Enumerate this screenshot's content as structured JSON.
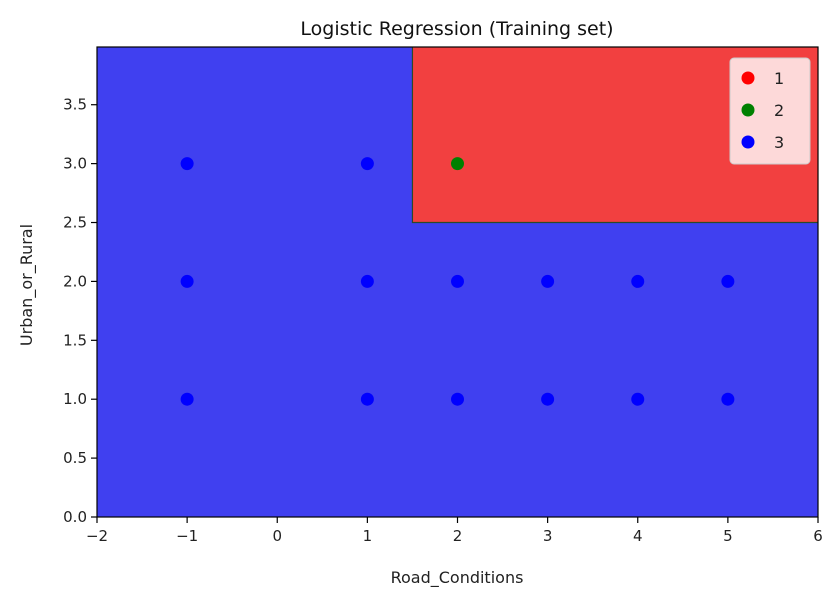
{
  "chart_data": {
    "type": "scatter",
    "title": "Logistic Regression (Training set)",
    "xlabel": "Road_Conditions",
    "ylabel": "Urban_or_Rural",
    "xlim": [
      -2,
      6
    ],
    "ylim": [
      0,
      3.99
    ],
    "xticks": [
      -2,
      -1,
      0,
      1,
      2,
      3,
      4,
      5,
      6
    ],
    "xtick_labels": [
      "−2",
      "−1",
      "0",
      "1",
      "2",
      "3",
      "4",
      "5",
      "6"
    ],
    "yticks": [
      0.0,
      0.5,
      1.0,
      1.5,
      2.0,
      2.5,
      3.0,
      3.5
    ],
    "ytick_labels": [
      "0.0",
      "0.5",
      "1.0",
      "1.5",
      "2.0",
      "2.5",
      "3.0",
      "3.5"
    ],
    "grid": false,
    "legend_position": "top-right",
    "regions": [
      {
        "class": "3",
        "color": "#4040f0",
        "x": [
          -2,
          6
        ],
        "y": [
          0,
          3.99
        ]
      },
      {
        "class": "1",
        "color": "#f24040",
        "x": [
          1.5,
          6
        ],
        "y": [
          2.5,
          3.99
        ]
      }
    ],
    "series": [
      {
        "name": "1",
        "color": "#ff0000",
        "points": []
      },
      {
        "name": "2",
        "color": "#008000",
        "points": [
          [
            2,
            3
          ]
        ]
      },
      {
        "name": "3",
        "color": "#0000ff",
        "points": [
          [
            -1,
            3
          ],
          [
            1,
            3
          ],
          [
            -1,
            2
          ],
          [
            1,
            2
          ],
          [
            2,
            2
          ],
          [
            3,
            2
          ],
          [
            4,
            2
          ],
          [
            5,
            2
          ],
          [
            -1,
            1
          ],
          [
            1,
            1
          ],
          [
            2,
            1
          ],
          [
            3,
            1
          ],
          [
            4,
            1
          ],
          [
            5,
            1
          ]
        ]
      }
    ]
  }
}
